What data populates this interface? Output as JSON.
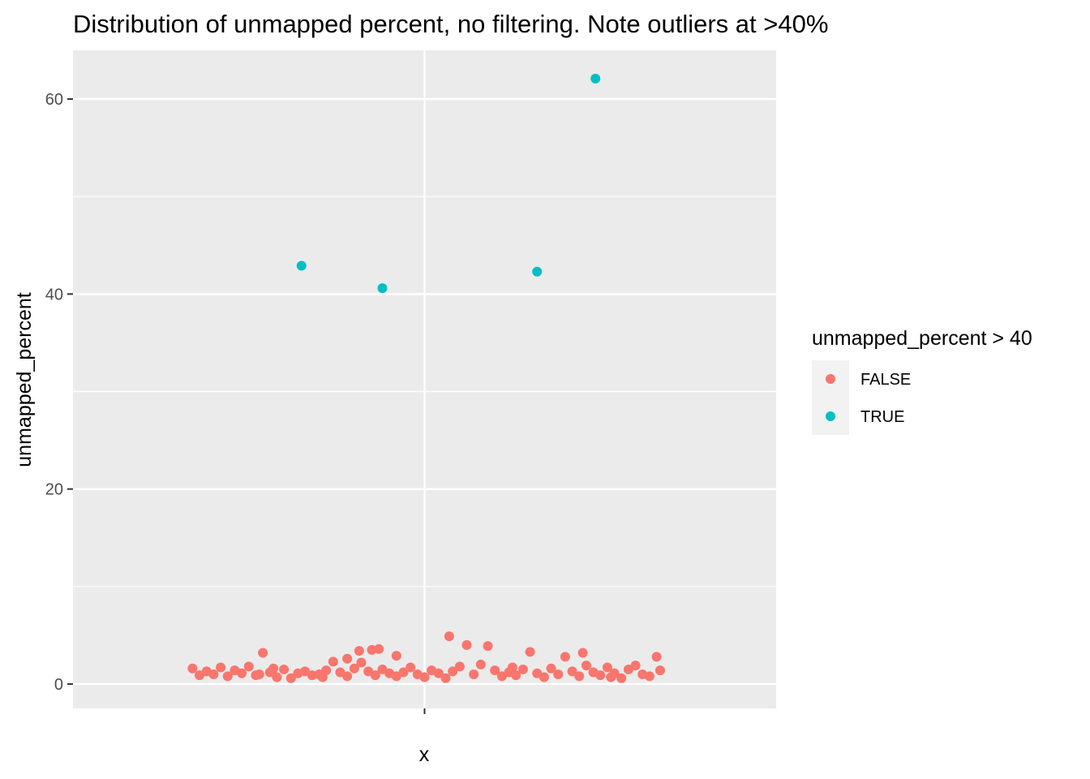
{
  "chart_data": {
    "type": "scatter",
    "title": "Distribution of unmapped percent, no filtering. Note outliers at >40%",
    "xlabel": "x",
    "ylabel": "unmapped_percent",
    "ylim": [
      -2.5,
      65
    ],
    "xlim": [
      -0.5,
      0.5
    ],
    "y_ticks": [
      0,
      20,
      40,
      60
    ],
    "y_tick_labels": [
      "0",
      "20",
      "40",
      "60"
    ],
    "x_ticks": [
      0
    ],
    "grid": true,
    "legend": {
      "title": "unmapped_percent > 40",
      "placement": "right",
      "entries": [
        {
          "label": "FALSE",
          "color": "#F8766D"
        },
        {
          "label": "TRUE",
          "color": "#00BFC4"
        }
      ]
    },
    "series": [
      {
        "name": "FALSE",
        "color": "#F8766D",
        "points": [
          {
            "x": -0.33,
            "y": 1.6
          },
          {
            "x": -0.32,
            "y": 0.9
          },
          {
            "x": -0.31,
            "y": 1.3
          },
          {
            "x": -0.3,
            "y": 1.0
          },
          {
            "x": -0.29,
            "y": 1.7
          },
          {
            "x": -0.28,
            "y": 0.8
          },
          {
            "x": -0.27,
            "y": 1.4
          },
          {
            "x": -0.26,
            "y": 1.1
          },
          {
            "x": -0.25,
            "y": 1.8
          },
          {
            "x": -0.24,
            "y": 0.9
          },
          {
            "x": -0.23,
            "y": 3.2
          },
          {
            "x": -0.22,
            "y": 1.2
          },
          {
            "x": -0.21,
            "y": 0.7
          },
          {
            "x": -0.2,
            "y": 1.5
          },
          {
            "x": -0.19,
            "y": 0.6
          },
          {
            "x": -0.18,
            "y": 1.1
          },
          {
            "x": -0.17,
            "y": 1.3
          },
          {
            "x": -0.16,
            "y": 0.9
          },
          {
            "x": -0.15,
            "y": 1.0
          },
          {
            "x": -0.14,
            "y": 1.4
          },
          {
            "x": -0.13,
            "y": 2.3
          },
          {
            "x": -0.12,
            "y": 1.2
          },
          {
            "x": -0.11,
            "y": 0.8
          },
          {
            "x": -0.1,
            "y": 1.6
          },
          {
            "x": -0.093,
            "y": 3.4
          },
          {
            "x": -0.09,
            "y": 2.2
          },
          {
            "x": -0.08,
            "y": 1.3
          },
          {
            "x": -0.07,
            "y": 0.9
          },
          {
            "x": -0.065,
            "y": 3.6
          },
          {
            "x": -0.06,
            "y": 1.5
          },
          {
            "x": -0.05,
            "y": 1.1
          },
          {
            "x": -0.04,
            "y": 0.8
          },
          {
            "x": -0.03,
            "y": 1.2
          },
          {
            "x": -0.02,
            "y": 1.7
          },
          {
            "x": -0.01,
            "y": 1.0
          },
          {
            "x": 0.0,
            "y": 0.7
          },
          {
            "x": -0.11,
            "y": 2.6
          },
          {
            "x": -0.075,
            "y": 3.5
          },
          {
            "x": -0.04,
            "y": 2.9
          },
          {
            "x": 0.01,
            "y": 1.4
          },
          {
            "x": 0.02,
            "y": 1.1
          },
          {
            "x": 0.03,
            "y": 0.6
          },
          {
            "x": 0.035,
            "y": 4.9
          },
          {
            "x": 0.04,
            "y": 1.3
          },
          {
            "x": 0.05,
            "y": 1.8
          },
          {
            "x": 0.06,
            "y": 4.0
          },
          {
            "x": 0.07,
            "y": 1.0
          },
          {
            "x": 0.08,
            "y": 2.0
          },
          {
            "x": 0.09,
            "y": 3.9
          },
          {
            "x": 0.1,
            "y": 1.4
          },
          {
            "x": 0.11,
            "y": 0.8
          },
          {
            "x": 0.12,
            "y": 1.2
          },
          {
            "x": 0.13,
            "y": 0.9
          },
          {
            "x": 0.14,
            "y": 1.5
          },
          {
            "x": 0.15,
            "y": 3.3
          },
          {
            "x": 0.16,
            "y": 1.1
          },
          {
            "x": 0.17,
            "y": 0.7
          },
          {
            "x": 0.18,
            "y": 1.6
          },
          {
            "x": 0.19,
            "y": 1.0
          },
          {
            "x": 0.2,
            "y": 2.8
          },
          {
            "x": 0.21,
            "y": 1.3
          },
          {
            "x": 0.22,
            "y": 0.8
          },
          {
            "x": 0.225,
            "y": 3.2
          },
          {
            "x": 0.23,
            "y": 1.9
          },
          {
            "x": 0.24,
            "y": 1.2
          },
          {
            "x": 0.25,
            "y": 0.9
          },
          {
            "x": 0.26,
            "y": 1.7
          },
          {
            "x": 0.27,
            "y": 1.1
          },
          {
            "x": 0.28,
            "y": 0.6
          },
          {
            "x": 0.29,
            "y": 1.5
          },
          {
            "x": 0.3,
            "y": 1.9
          },
          {
            "x": 0.31,
            "y": 1.0
          },
          {
            "x": 0.32,
            "y": 0.8
          },
          {
            "x": 0.33,
            "y": 2.8
          },
          {
            "x": 0.335,
            "y": 1.4
          },
          {
            "x": -0.235,
            "y": 1.0
          },
          {
            "x": -0.215,
            "y": 1.6
          },
          {
            "x": -0.145,
            "y": 0.7
          },
          {
            "x": 0.125,
            "y": 1.7
          },
          {
            "x": 0.265,
            "y": 0.7
          }
        ]
      },
      {
        "name": "TRUE",
        "color": "#00BFC4",
        "points": [
          {
            "x": -0.175,
            "y": 42.9
          },
          {
            "x": -0.06,
            "y": 40.6
          },
          {
            "x": 0.16,
            "y": 42.3
          },
          {
            "x": 0.243,
            "y": 62.1
          }
        ]
      }
    ]
  }
}
